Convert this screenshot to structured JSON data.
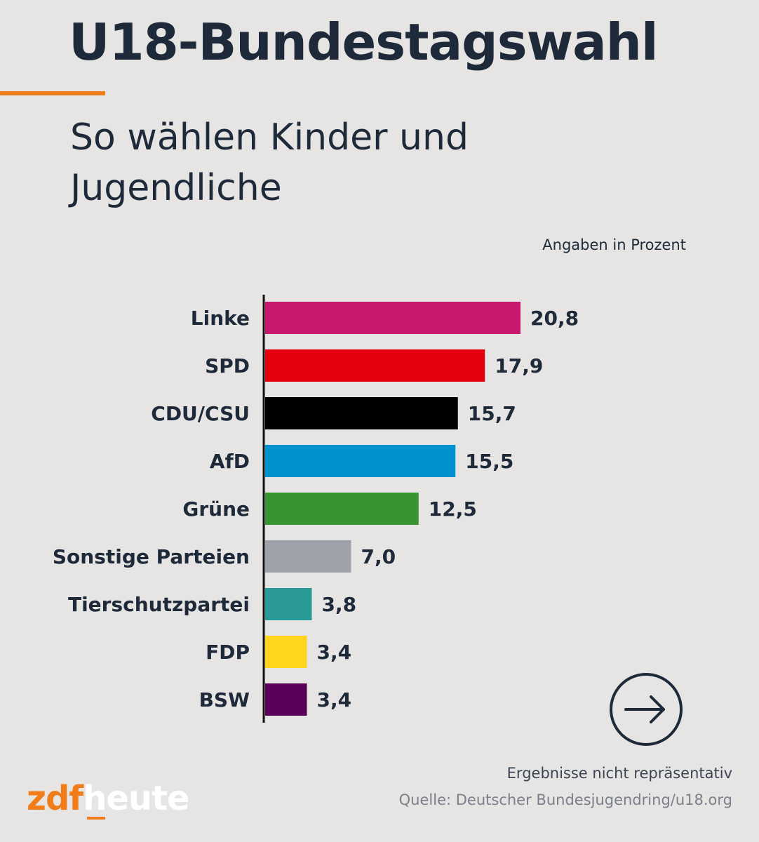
{
  "header": {
    "title": "U18-Bundestagswahl",
    "subtitle": "So wählen Kinder und Jugendliche",
    "unit_note": "Angaben in Prozent"
  },
  "footer": {
    "note": "Ergebnisse nicht repräsentativ",
    "source": "Quelle: Deutscher Bundesjugendring/u18.org",
    "logo_primary": "zdf",
    "logo_secondary": "heute"
  },
  "icons": {
    "next": "arrow-right-circle-icon"
  },
  "colors": {
    "background": "#e6e5e3",
    "accent": "#f07d1a",
    "text": "#1e2a3a"
  },
  "chart_data": {
    "type": "bar",
    "orientation": "horizontal",
    "title": "U18-Bundestagswahl",
    "subtitle": "So wählen Kinder und Jugendliche",
    "unit": "Angaben in Prozent",
    "categories": [
      "Linke",
      "SPD",
      "CDU/CSU",
      "AfD",
      "Grüne",
      "Sonstige Parteien",
      "Tierschutzpartei",
      "FDP",
      "BSW"
    ],
    "values": [
      20.8,
      17.9,
      15.7,
      15.5,
      12.5,
      7.0,
      3.8,
      3.4,
      3.4
    ],
    "value_labels": [
      "20,8",
      "17,9",
      "15,7",
      "15,5",
      "12,5",
      "7,0",
      "3,8",
      "3,4",
      "3,4"
    ],
    "colors": [
      "#c8186e",
      "#e3000f",
      "#000000",
      "#0092cf",
      "#36952f",
      "#9fa2aa",
      "#2a9a98",
      "#ffd51e",
      "#5a0059"
    ],
    "xlim": [
      0,
      20.8
    ],
    "grid": false,
    "legend": "none"
  }
}
